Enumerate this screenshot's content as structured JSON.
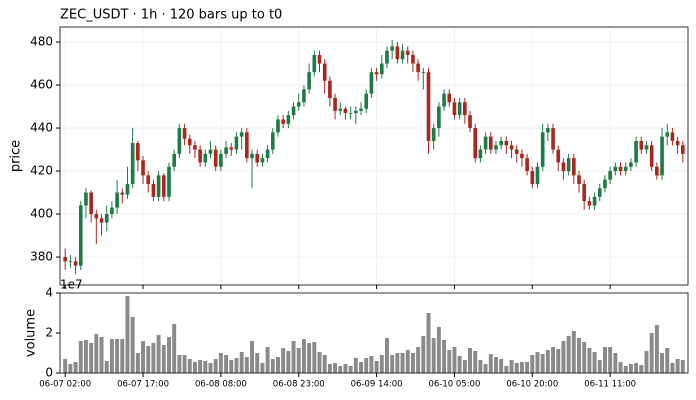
{
  "chart_data": [
    {
      "type": "candlestick",
      "title": "ZEC_USDT  ·  1h  ·  120 bars up to t0",
      "ylabel": "price",
      "xlim": [
        -1,
        120
      ],
      "ylim": [
        367,
        487
      ],
      "yticks": [
        380,
        400,
        420,
        440,
        460,
        480
      ],
      "grid": true,
      "up_color": "#1e7a46",
      "down_color": "#a8281f",
      "open": [
        380,
        378,
        378,
        376,
        404,
        410,
        400,
        398,
        396,
        400,
        403,
        410,
        409,
        414,
        433,
        425,
        418,
        414,
        408,
        418,
        408,
        422,
        428,
        440,
        435,
        432,
        430,
        424,
        428,
        430,
        422,
        428,
        431,
        430,
        436,
        438,
        426,
        428,
        424,
        426,
        430,
        438,
        444,
        442,
        446,
        450,
        452,
        458,
        466,
        474,
        470,
        462,
        454,
        448,
        449,
        447,
        447,
        448,
        449,
        456,
        466,
        465,
        470,
        476,
        478,
        472,
        476,
        474,
        470,
        466,
        466,
        434,
        440,
        450,
        456,
        452,
        446,
        452,
        446,
        440,
        426,
        430,
        436,
        430,
        432,
        434,
        432,
        430,
        428,
        426,
        420,
        414,
        422,
        438,
        440,
        430,
        424,
        420,
        426,
        418,
        414,
        406,
        404,
        408,
        412,
        416,
        420,
        422,
        420,
        422,
        424,
        434,
        430,
        432,
        422,
        418,
        436,
        438,
        434,
        432
      ],
      "high": [
        384,
        381,
        380,
        406,
        412,
        411,
        402,
        400,
        404,
        406,
        416,
        412,
        422,
        440,
        434,
        427,
        420,
        416,
        420,
        419,
        424,
        430,
        442,
        442,
        437,
        434,
        432,
        430,
        434,
        432,
        430,
        434,
        433,
        438,
        440,
        440,
        430,
        430,
        428,
        432,
        440,
        446,
        446,
        448,
        452,
        456,
        460,
        470,
        476,
        476,
        472,
        464,
        456,
        452,
        450,
        450,
        450,
        452,
        458,
        468,
        468,
        474,
        478,
        481,
        480,
        479,
        478,
        476,
        472,
        468,
        468,
        442,
        452,
        458,
        458,
        454,
        454,
        454,
        448,
        442,
        432,
        438,
        438,
        434,
        436,
        436,
        434,
        432,
        430,
        428,
        422,
        424,
        442,
        442,
        442,
        432,
        426,
        428,
        428,
        420,
        416,
        408,
        410,
        414,
        418,
        422,
        424,
        424,
        424,
        426,
        436,
        436,
        434,
        434,
        424,
        440,
        442,
        440,
        436,
        434
      ],
      "low": [
        374,
        375,
        372,
        374,
        398,
        396,
        386,
        390,
        392,
        398,
        400,
        405,
        407,
        412,
        420,
        414,
        410,
        406,
        406,
        406,
        406,
        420,
        426,
        432,
        428,
        426,
        422,
        422,
        426,
        420,
        420,
        426,
        427,
        428,
        430,
        424,
        412,
        422,
        422,
        424,
        428,
        436,
        440,
        440,
        444,
        448,
        450,
        456,
        464,
        466,
        456,
        450,
        444,
        446,
        444,
        444,
        442,
        446,
        447,
        454,
        462,
        463,
        468,
        472,
        470,
        470,
        470,
        466,
        462,
        458,
        428,
        430,
        436,
        448,
        450,
        444,
        444,
        442,
        438,
        424,
        424,
        428,
        428,
        428,
        430,
        428,
        426,
        424,
        422,
        418,
        412,
        412,
        420,
        434,
        428,
        420,
        416,
        418,
        414,
        410,
        402,
        402,
        402,
        406,
        410,
        414,
        418,
        418,
        418,
        420,
        422,
        428,
        428,
        420,
        416,
        416,
        432,
        432,
        428,
        424
      ],
      "close": [
        378,
        378,
        376,
        404,
        410,
        400,
        398,
        396,
        400,
        403,
        410,
        409,
        414,
        433,
        425,
        418,
        414,
        408,
        418,
        408,
        422,
        428,
        440,
        435,
        432,
        430,
        424,
        428,
        430,
        422,
        428,
        431,
        430,
        436,
        438,
        426,
        428,
        424,
        426,
        430,
        438,
        444,
        442,
        446,
        450,
        452,
        458,
        466,
        474,
        470,
        462,
        454,
        448,
        449,
        447,
        447,
        448,
        449,
        456,
        466,
        465,
        470,
        476,
        478,
        472,
        476,
        474,
        470,
        466,
        466,
        434,
        440,
        450,
        456,
        452,
        446,
        452,
        446,
        440,
        426,
        430,
        436,
        430,
        432,
        434,
        432,
        430,
        428,
        426,
        420,
        414,
        422,
        438,
        440,
        430,
        424,
        420,
        426,
        418,
        414,
        406,
        404,
        408,
        412,
        416,
        420,
        422,
        420,
        422,
        424,
        434,
        430,
        432,
        422,
        418,
        436,
        438,
        434,
        432,
        428
      ]
    },
    {
      "type": "bar",
      "ylabel": "volume",
      "offset_label": "1e7",
      "color": "#8a8a8a",
      "xlim": [
        -1,
        120
      ],
      "ylim": [
        0,
        4
      ],
      "yticks": [
        0,
        2,
        4
      ],
      "xticks": [
        {
          "value": 0,
          "label": "06-07 02:00"
        },
        {
          "value": 15,
          "label": "06-07 17:00"
        },
        {
          "value": 30,
          "label": "06-08 08:00"
        },
        {
          "value": 45,
          "label": "06-08 23:00"
        },
        {
          "value": 60,
          "label": "06-09 14:00"
        },
        {
          "value": 75,
          "label": "06-10 05:00"
        },
        {
          "value": 90,
          "label": "06-10 20:00"
        },
        {
          "value": 105,
          "label": "06-11 11:00"
        }
      ],
      "values": [
        0.7,
        0.45,
        0.55,
        1.6,
        1.65,
        1.5,
        1.95,
        1.8,
        0.6,
        1.7,
        1.7,
        1.7,
        3.85,
        2.8,
        1.0,
        1.6,
        1.35,
        1.5,
        1.9,
        1.4,
        1.8,
        2.45,
        0.9,
        0.9,
        0.7,
        0.55,
        0.65,
        0.6,
        0.5,
        0.7,
        1.0,
        0.9,
        0.65,
        0.75,
        1.05,
        0.8,
        1.6,
        1.0,
        0.5,
        1.3,
        0.7,
        0.8,
        1.25,
        1.1,
        1.6,
        1.25,
        1.7,
        1.5,
        1.55,
        1.05,
        0.9,
        0.45,
        0.5,
        0.35,
        0.45,
        0.35,
        0.75,
        0.55,
        0.75,
        0.85,
        0.6,
        0.9,
        1.75,
        0.9,
        1.0,
        1.0,
        1.15,
        1.0,
        1.3,
        1.85,
        3.0,
        1.75,
        2.3,
        1.65,
        1.15,
        1.3,
        0.85,
        0.65,
        1.25,
        1.1,
        0.65,
        0.45,
        0.95,
        0.8,
        0.7,
        0.35,
        0.65,
        0.5,
        0.55,
        0.55,
        0.9,
        1.05,
        0.95,
        1.15,
        1.3,
        1.2,
        1.6,
        1.85,
        2.1,
        1.75,
        1.55,
        1.25,
        1.05,
        0.65,
        1.3,
        1.3,
        1.0,
        0.55,
        0.35,
        0.45,
        0.5,
        0.4,
        1.1,
        2.0,
        2.4,
        1.0,
        1.25,
        0.5,
        0.7,
        0.65
      ]
    }
  ]
}
